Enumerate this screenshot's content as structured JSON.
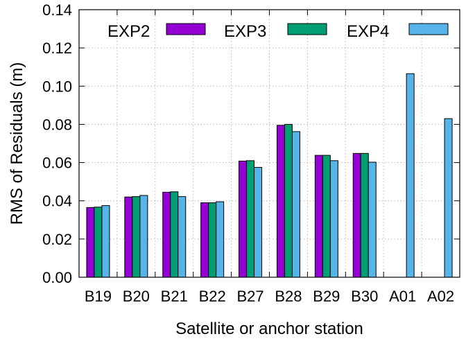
{
  "chart_data": {
    "type": "bar",
    "title": "",
    "xlabel": "Satellite or anchor station",
    "ylabel": "RMS of Residuals (m)",
    "ylim": [
      0,
      0.14
    ],
    "yticks": [
      "0.00",
      "0.02",
      "0.04",
      "0.06",
      "0.08",
      "0.10",
      "0.12",
      "0.14"
    ],
    "categories": [
      "B19",
      "B20",
      "B21",
      "B22",
      "B27",
      "B28",
      "B29",
      "B30",
      "A01",
      "A02"
    ],
    "grid": true,
    "legend_position": "top",
    "series": [
      {
        "name": "EXP2",
        "color": "#9400d3",
        "values": [
          0.0365,
          0.042,
          0.0445,
          0.039,
          0.0608,
          0.0795,
          0.0638,
          0.0648,
          null,
          null
        ]
      },
      {
        "name": "EXP3",
        "color": "#009e73",
        "values": [
          0.0367,
          0.0422,
          0.0447,
          0.039,
          0.061,
          0.08,
          0.0638,
          0.0648,
          null,
          null
        ]
      },
      {
        "name": "EXP4",
        "color": "#56b4e9",
        "values": [
          0.0375,
          0.0428,
          0.0422,
          0.0395,
          0.0575,
          0.0762,
          0.061,
          0.0602,
          0.1065,
          0.083
        ]
      }
    ]
  }
}
